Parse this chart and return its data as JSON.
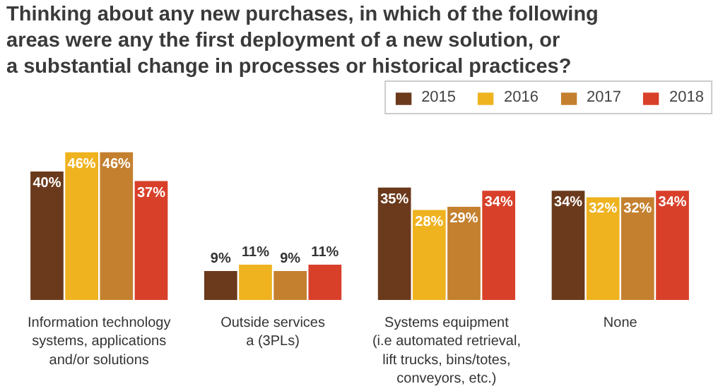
{
  "chart_data": {
    "type": "bar",
    "title": "Thinking about any new purchases, in which of the following\nareas were any the first deployment of a new solution, or\na substantial change in processes or historical practices?",
    "categories": [
      "Information technology\nsystems, applications\nand/or solutions",
      "Outside services\na (3PLs)",
      "Systems equipment\n(i.e automated retrieval,\nlift trucks, bins/totes,\nconveyors, etc.)",
      "None"
    ],
    "series": [
      {
        "name": "2015",
        "color": "#6b3a1c",
        "values": [
          40,
          9,
          35,
          34
        ],
        "value_labels": [
          "40%",
          "9%",
          "35%",
          "34%"
        ]
      },
      {
        "name": "2016",
        "color": "#efb320",
        "values": [
          46,
          11,
          28,
          32
        ],
        "value_labels": [
          "46%",
          "11%",
          "28%",
          "32%"
        ]
      },
      {
        "name": "2017",
        "color": "#c4802f",
        "values": [
          46,
          9,
          29,
          32
        ],
        "value_labels": [
          "46%",
          "9%",
          "29%",
          "32%"
        ]
      },
      {
        "name": "2018",
        "color": "#d8402a",
        "values": [
          37,
          11,
          34,
          34
        ],
        "value_labels": [
          "37%",
          "11%",
          "34%",
          "34%"
        ]
      }
    ],
    "legend": "top right",
    "grid": false
  }
}
